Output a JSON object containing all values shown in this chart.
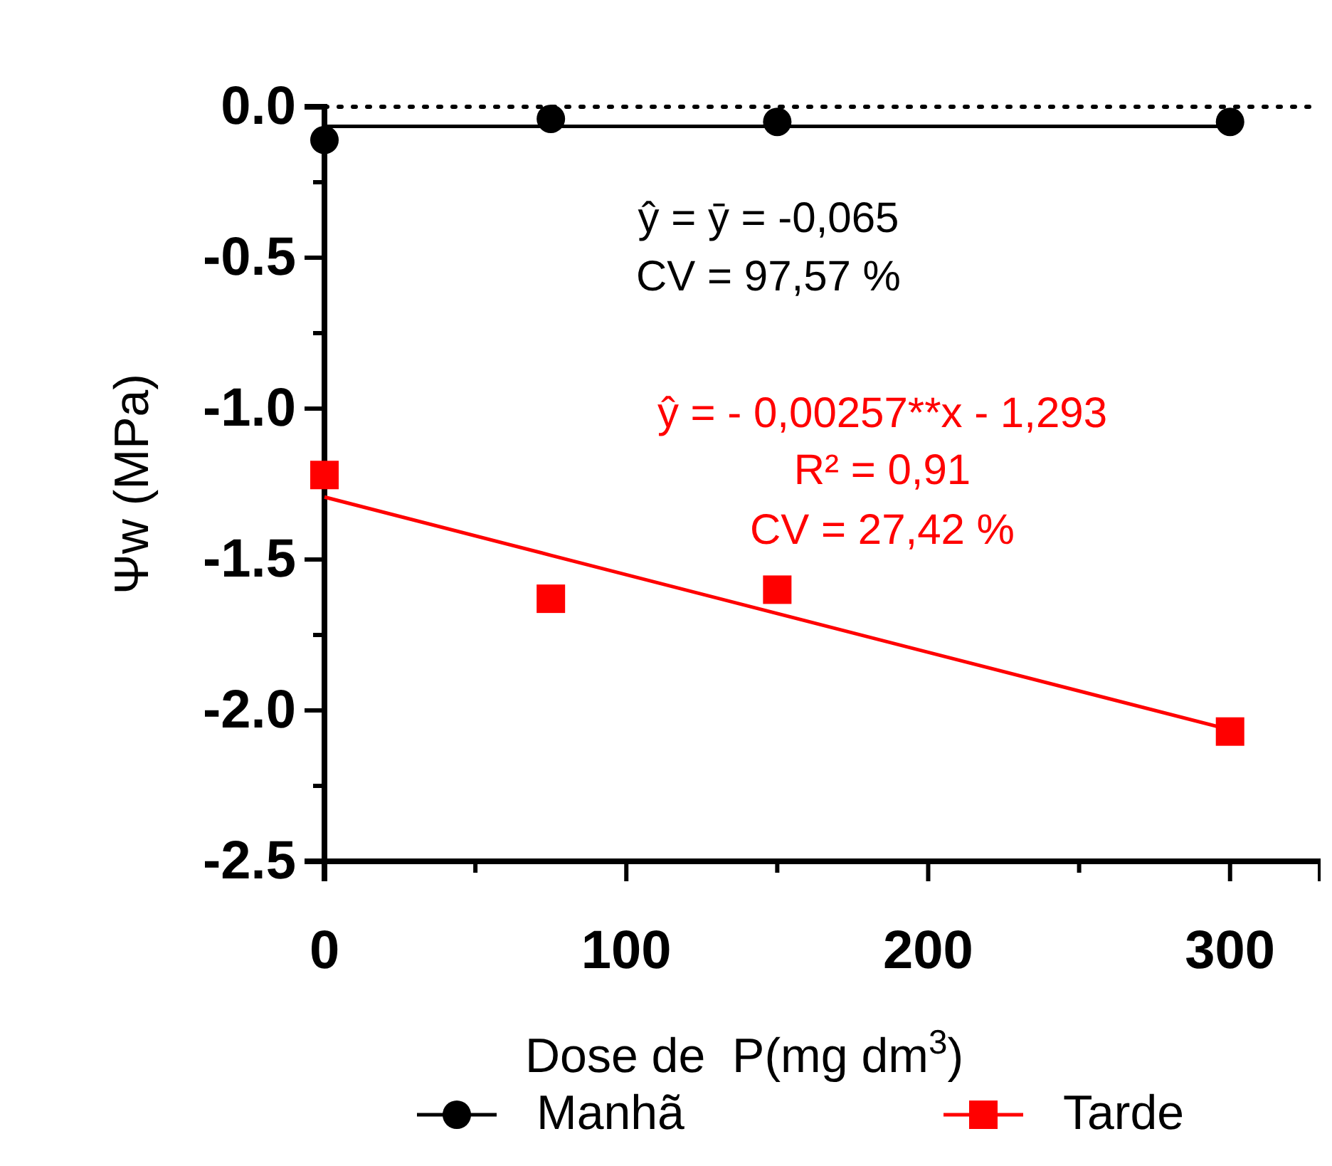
{
  "chart_data": {
    "type": "scatter",
    "xlabel": "Dose de  P(mg dm$^{3}$)",
    "ylabel": "Ψw (MPa)",
    "xlim": [
      0,
      330
    ],
    "xticks": [
      0,
      {
        "value": 50,
        "label": null
      },
      100,
      {
        "value": 150,
        "label": null
      },
      200,
      {
        "value": 250,
        "label": null
      },
      300
    ],
    "ylim": [
      -2.5,
      0
    ],
    "yticks": [
      {
        "value": 0,
        "label": "0.0"
      },
      {
        "value": -0.25,
        "label": null
      },
      {
        "value": -0.5,
        "label": "-0.5"
      },
      {
        "value": -0.75,
        "label": null
      },
      {
        "value": -1,
        "label": "-1.0"
      },
      {
        "value": -1.25,
        "label": null
      },
      {
        "value": -1.5,
        "label": "-1.5"
      },
      {
        "value": -1.75,
        "label": null
      },
      {
        "value": -2,
        "label": "-2.0"
      },
      {
        "value": -2.25,
        "label": null
      },
      {
        "value": -2.5,
        "label": "-2.5"
      }
    ],
    "x": [
      0,
      75,
      150,
      300
    ],
    "series": [
      {
        "name": "Manhã",
        "type": "scatter",
        "marker": "circle",
        "color": "#000000",
        "values": [
          -0.11,
          -0.04,
          -0.05,
          -0.05
        ]
      },
      {
        "name": "Tarde",
        "type": "scatter",
        "marker": "square",
        "color": "#ff0000",
        "values": [
          -1.22,
          -1.63,
          -1.6,
          -2.07
        ]
      },
      {
        "type": "line",
        "color": "#000000",
        "values": [
          -0.065,
          -0.065,
          -0.065,
          -0.065
        ]
      },
      {
        "type": "line",
        "color": "#ff0000",
        "values": [
          -1.293,
          -1.486,
          -1.679,
          -2.064
        ]
      }
    ],
    "ref_lines": [
      {
        "axis": "y",
        "value": 0,
        "line_style": "dotted",
        "color": "#000000"
      }
    ],
    "annotations": [
      "ŷ = ȳ = -0,065",
      "CV = 97,57 %",
      "ŷ = - 0,00257**x - 1,293",
      "R² = 0,91",
      "CV = 27,42 %"
    ],
    "legend": "bottom"
  }
}
